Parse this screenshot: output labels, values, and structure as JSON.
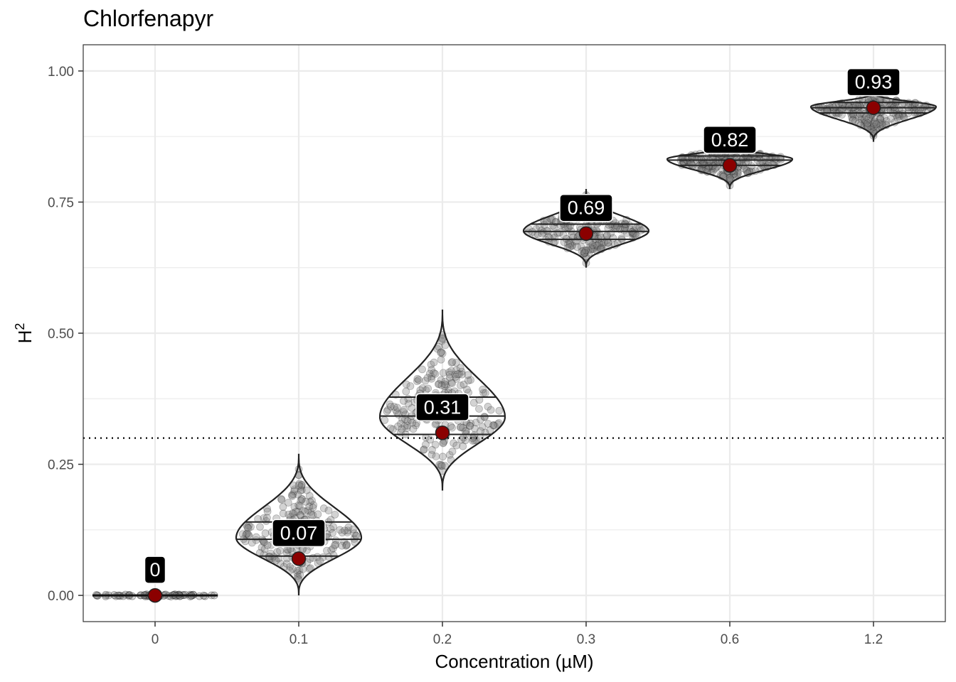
{
  "chart_data": {
    "type": "violin",
    "title": "Chlorfenapyr",
    "xlabel": "Concentration (µM)",
    "ylabel_base": "H",
    "ylabel_sup": "2",
    "categories": [
      "0",
      "0.1",
      "0.2",
      "0.3",
      "0.6",
      "1.2"
    ],
    "estimates": [
      0,
      0.07,
      0.31,
      0.69,
      0.82,
      0.93
    ],
    "estimate_labels": [
      "0",
      "0.07",
      "0.31",
      "0.69",
      "0.82",
      "0.93"
    ],
    "distributions": [
      {
        "min": 0.0,
        "max": 0.02,
        "q25": 0.0,
        "median": 0.0,
        "q75": 0.0,
        "mode": 0.0
      },
      {
        "min": 0.0,
        "max": 0.27,
        "q25": 0.075,
        "median": 0.107,
        "q75": 0.14,
        "mode": 0.11
      },
      {
        "min": 0.2,
        "max": 0.545,
        "q25": 0.307,
        "median": 0.342,
        "q75": 0.378,
        "mode": 0.34
      },
      {
        "min": 0.625,
        "max": 0.775,
        "q25": 0.679,
        "median": 0.694,
        "q75": 0.708,
        "mode": 0.695
      },
      {
        "min": 0.775,
        "max": 0.86,
        "q25": 0.82,
        "median": 0.83,
        "q75": 0.838,
        "mode": 0.832
      },
      {
        "min": 0.865,
        "max": 0.96,
        "q25": 0.92,
        "median": 0.93,
        "q75": 0.94,
        "mode": 0.932
      }
    ],
    "threshold": 0.3,
    "yticks": [
      0.0,
      0.25,
      0.5,
      0.75,
      1.0
    ],
    "ytick_labels": [
      "0.00",
      "0.25",
      "0.50",
      "0.75",
      "1.00"
    ],
    "ylim": [
      -0.05,
      1.05
    ],
    "estimate_color": "#8b0000",
    "label_bg": "#000000",
    "point_color": "#808080",
    "grid": true
  }
}
